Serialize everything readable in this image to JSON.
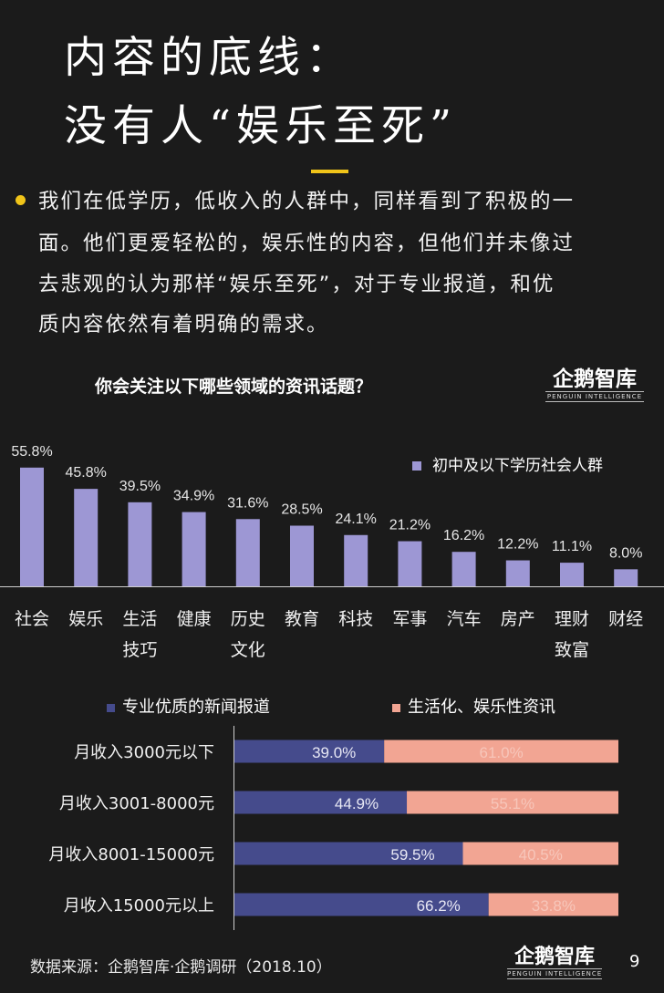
{
  "header": {
    "title_line1": "内容的底线：",
    "title_line2": "没有人“娱乐至死”",
    "accent_color": "#f0c419"
  },
  "intro": {
    "lines": [
      "我们在低学历，低收入的人群中，同样看到了积极的一",
      "面。他们更爱轻松的，娱乐性的内容，但他们并未像过",
      "去悲观的认为那样“娱乐至死”，对于专业报道，和优",
      "质内容依然有着明确的需求。"
    ]
  },
  "logo": {
    "name": "企鹅智库",
    "sub": "PENGUIN INTELLIGENCE"
  },
  "chart_data": [
    {
      "type": "bar",
      "title": "你会关注以下哪些领域的资讯话题？",
      "categories": [
        "社会",
        "娱乐",
        "生活技巧",
        "健康",
        "历史文化",
        "教育",
        "科技",
        "军事",
        "汽车",
        "房产",
        "理财致富",
        "财经"
      ],
      "category_lines": [
        [
          "社会"
        ],
        [
          "娱乐"
        ],
        [
          "生活",
          "技巧"
        ],
        [
          "健康"
        ],
        [
          "历史",
          "文化"
        ],
        [
          "教育"
        ],
        [
          "科技"
        ],
        [
          "军事"
        ],
        [
          "汽车"
        ],
        [
          "房产"
        ],
        [
          "理财",
          "致富"
        ],
        [
          "财经"
        ]
      ],
      "series": [
        {
          "name": "初中及以下学历社会人群",
          "values": [
            55.8,
            45.8,
            39.5,
            34.9,
            31.6,
            28.5,
            24.1,
            21.2,
            16.2,
            12.2,
            11.1,
            8.0
          ],
          "labels": [
            "55.8%",
            "45.8%",
            "39.5%",
            "34.9%",
            "31.6%",
            "28.5%",
            "24.1%",
            "21.2%",
            "16.2%",
            "12.2%",
            "11.1%",
            "8.0%"
          ],
          "color": "#9d97d4"
        }
      ],
      "ylim": [
        0,
        60
      ],
      "grid": false,
      "legend_position": "top-right"
    },
    {
      "type": "bar",
      "orientation": "horizontal",
      "stacked": true,
      "categories": [
        "月收入3000元以下",
        "月收入3001-8000元",
        "月收入8001-15000元",
        "月收入15000元以上"
      ],
      "series": [
        {
          "name": "专业优质的新闻报道",
          "values": [
            39.0,
            44.9,
            59.5,
            66.2
          ],
          "labels": [
            "39.0%",
            "44.9%",
            "59.5%",
            "66.2%"
          ],
          "color": "#454b8c"
        },
        {
          "name": "生活化、娱乐性资讯",
          "values": [
            61.0,
            55.1,
            40.5,
            33.8
          ],
          "labels": [
            "61.0%",
            "55.1%",
            "40.5%",
            "33.8%"
          ],
          "color": "#f2a593"
        }
      ],
      "xlim": [
        0,
        100
      ],
      "legend_position": "top"
    }
  ],
  "footer": {
    "source": "数据来源：企鹅智库·企鹅调研（2018.10）",
    "page_number": "9"
  }
}
